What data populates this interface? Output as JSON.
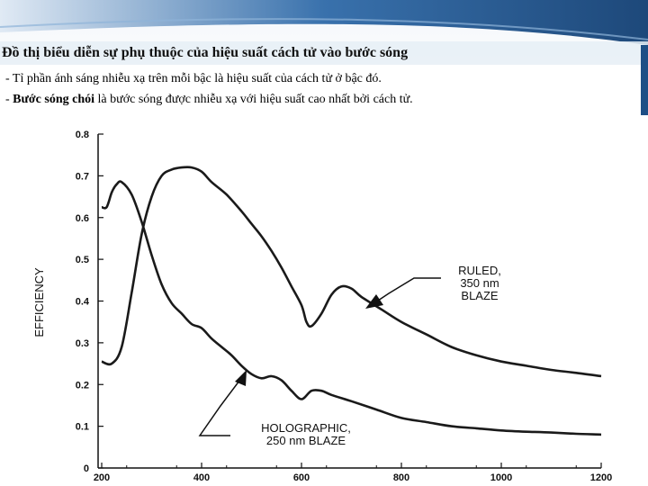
{
  "slide": {
    "title": "Đồ thị biểu diễn sự phụ thuộc của hiệu suất cách tử vào bước sóng",
    "bullets": [
      {
        "prefix": "- Tỉ phần ánh sáng nhiễu xạ trên mỗi bậc  là hiệu suất của cách tử ở bậc đó.",
        "bold": "",
        "rest": ""
      },
      {
        "prefix": "- ",
        "bold": "Bước sóng chói",
        "rest": " là bước sóng được nhiễu xạ với hiệu suất cao nhất bởi cách tử."
      }
    ],
    "colors": {
      "banner_dark": "#1e4f86",
      "banner_light": "#e9f0f7",
      "text": "#000000",
      "curve": "#1a1a1a"
    }
  },
  "chart_data": {
    "type": "line",
    "title": "",
    "xlabel": "",
    "ylabel": "EFFICIENCY",
    "xlim": [
      200,
      1200
    ],
    "ylim": [
      0,
      0.8
    ],
    "x_ticks": [
      "200",
      "400",
      "600",
      "800",
      "1000",
      "1200"
    ],
    "x_tick_values": [
      200,
      400,
      600,
      800,
      1000,
      1200
    ],
    "y_ticks": [
      "0",
      "0.1",
      "0.2",
      "0.3",
      "0.4",
      "0.5",
      "0.6",
      "0.7",
      "0.8"
    ],
    "y_tick_values": [
      0,
      0.1,
      0.2,
      0.3,
      0.4,
      0.5,
      0.6,
      0.7,
      0.8
    ],
    "grid": false,
    "series": [
      {
        "name": "RULED, 350 nm BLAZE",
        "label_lines": [
          "RULED,",
          "350 nm",
          "BLAZE"
        ],
        "x": [
          200,
          220,
          240,
          260,
          280,
          300,
          320,
          340,
          360,
          380,
          400,
          420,
          450,
          480,
          500,
          520,
          540,
          560,
          580,
          600,
          610,
          620,
          640,
          660,
          680,
          700,
          720,
          760,
          800,
          850,
          900,
          950,
          1000,
          1050,
          1100,
          1150,
          1200
        ],
        "y": [
          0.255,
          0.25,
          0.29,
          0.42,
          0.56,
          0.65,
          0.7,
          0.715,
          0.72,
          0.72,
          0.71,
          0.685,
          0.655,
          0.615,
          0.585,
          0.555,
          0.52,
          0.48,
          0.435,
          0.39,
          0.35,
          0.34,
          0.37,
          0.415,
          0.435,
          0.43,
          0.41,
          0.38,
          0.35,
          0.32,
          0.29,
          0.27,
          0.255,
          0.245,
          0.235,
          0.228,
          0.22
        ]
      },
      {
        "name": "HOLOGRAPHIC, 250 nm BLAZE",
        "label_lines": [
          "HOLOGRAPHIC,",
          "250 nm BLAZE"
        ],
        "x": [
          200,
          210,
          220,
          230,
          240,
          260,
          280,
          300,
          320,
          340,
          360,
          380,
          400,
          420,
          440,
          460,
          480,
          500,
          520,
          540,
          560,
          580,
          600,
          620,
          640,
          660,
          700,
          750,
          800,
          850,
          900,
          950,
          1000,
          1050,
          1100,
          1150,
          1200
        ],
        "y": [
          0.625,
          0.625,
          0.66,
          0.68,
          0.685,
          0.655,
          0.59,
          0.51,
          0.44,
          0.395,
          0.37,
          0.345,
          0.335,
          0.31,
          0.29,
          0.27,
          0.245,
          0.225,
          0.215,
          0.22,
          0.21,
          0.185,
          0.165,
          0.185,
          0.185,
          0.175,
          0.16,
          0.14,
          0.12,
          0.11,
          0.1,
          0.095,
          0.09,
          0.087,
          0.085,
          0.082,
          0.08
        ]
      }
    ],
    "annotations": [
      {
        "text": "RULED, 350 nm BLAZE",
        "points_to_series": 0
      },
      {
        "text": "HOLOGRAPHIC, 250 nm BLAZE",
        "points_to_series": 1
      }
    ]
  }
}
